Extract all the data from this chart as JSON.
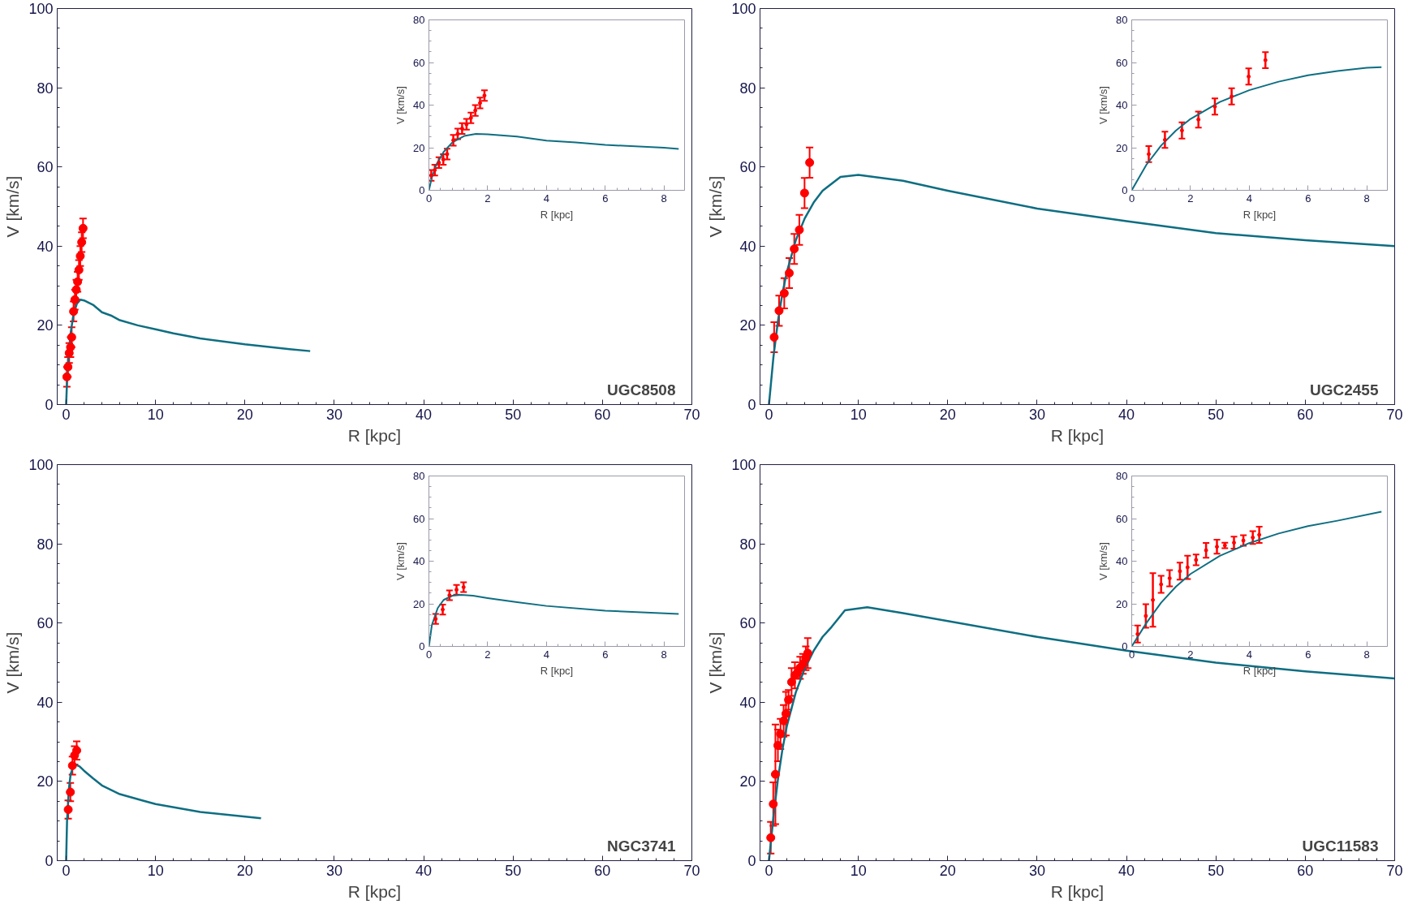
{
  "chart_data": [
    {
      "type": "scatter",
      "xlabel": "R [kpc]",
      "ylabel": "V [km/s]",
      "xlim": [
        -1,
        70
      ],
      "ylim": [
        0,
        100
      ],
      "xticks": [
        0,
        10,
        20,
        30,
        40,
        50,
        60,
        70
      ],
      "yticks": [
        0,
        20,
        40,
        60,
        80,
        100
      ],
      "annotations": [
        "UGC8508"
      ],
      "series": [
        {
          "type": "line",
          "color": "#0e6e82",
          "x": [
            0,
            0.1,
            0.25,
            0.5,
            0.8,
            1.2,
            1.6,
            2,
            3,
            4,
            5,
            6,
            8,
            10,
            12,
            15,
            20,
            25,
            27.3
          ],
          "values": [
            0,
            6,
            12,
            18,
            22.5,
            25.5,
            26.5,
            26.3,
            25.2,
            23.3,
            22.5,
            21.3,
            20,
            19,
            18,
            16.7,
            15.2,
            14,
            13.5
          ]
        },
        {
          "color": "#ff0000",
          "marker": "circle",
          "x": [
            0.08,
            0.2,
            0.34,
            0.49,
            0.62,
            0.83,
            0.98,
            1.13,
            1.28,
            1.43,
            1.58,
            1.74,
            1.89
          ],
          "values": [
            7,
            9.5,
            13,
            14.5,
            17,
            23.5,
            26.5,
            29,
            31,
            34,
            37.5,
            41,
            44.5
          ],
          "errors": [
            2.5,
            2.5,
            2.5,
            2.5,
            2.5,
            2.5,
            2.5,
            2.5,
            2.5,
            2.5,
            2.5,
            2.5,
            2.5
          ]
        }
      ]
    },
    {
      "type": "scatter",
      "xlabel": "R [kpc]",
      "ylabel": "V [km/s]",
      "xlim": [
        0,
        8.7
      ],
      "ylim": [
        0,
        80
      ],
      "xticks": [
        0,
        2,
        4,
        6,
        8
      ],
      "yticks": [
        0,
        20,
        40,
        60,
        80
      ],
      "series": [
        {
          "type": "line",
          "color": "#0e6e82",
          "x": [
            0,
            0.1,
            0.25,
            0.5,
            0.8,
            1.2,
            1.6,
            2,
            3,
            4,
            5,
            6,
            8,
            8.5
          ],
          "values": [
            0,
            6,
            12,
            18,
            22.5,
            25.5,
            26.5,
            26.3,
            25.2,
            23.3,
            22.5,
            21.3,
            20,
            19.4
          ]
        },
        {
          "color": "#ff0000",
          "marker": "circle",
          "x": [
            0.08,
            0.2,
            0.34,
            0.49,
            0.62,
            0.83,
            0.98,
            1.13,
            1.28,
            1.43,
            1.58,
            1.74,
            1.89
          ],
          "values": [
            7,
            9.5,
            13,
            14.5,
            17,
            23.5,
            26.5,
            29,
            31,
            34,
            37.5,
            41,
            44.5
          ],
          "errors": [
            2.5,
            2.5,
            2.5,
            2.5,
            2.5,
            2.5,
            2.5,
            2.5,
            2.5,
            2.5,
            2.5,
            2.5,
            2.5
          ]
        }
      ]
    },
    {
      "type": "scatter",
      "xlabel": "R [kpc]",
      "ylabel": "V [km/s]",
      "xlim": [
        -1,
        70
      ],
      "ylim": [
        0,
        100
      ],
      "xticks": [
        0,
        10,
        20,
        30,
        40,
        50,
        60,
        70
      ],
      "yticks": [
        0,
        20,
        40,
        60,
        80,
        100
      ],
      "annotations": [
        "UGC2455"
      ],
      "series": [
        {
          "type": "line",
          "color": "#0e6e82",
          "x": [
            0,
            0.5,
            1,
            1.5,
            2,
            3,
            4,
            5,
            6,
            8,
            10,
            15,
            20,
            30,
            40,
            50,
            60,
            70
          ],
          "values": [
            0,
            12,
            21,
            28,
            33.5,
            41.5,
            47,
            51,
            54,
            57.5,
            58,
            56.5,
            54,
            49.5,
            46.3,
            43.3,
            41.5,
            40
          ]
        },
        {
          "color": "#ff0000",
          "marker": "circle",
          "x": [
            0.58,
            1.13,
            1.71,
            2.27,
            2.83,
            3.4,
            3.98,
            4.55
          ],
          "values": [
            17,
            23.7,
            28.1,
            33.2,
            39.3,
            44.1,
            53.4,
            61.1
          ],
          "errors": [
            3.8,
            3.8,
            3.8,
            3.8,
            3.8,
            3.8,
            3.8,
            3.8
          ]
        }
      ]
    },
    {
      "type": "scatter",
      "xlabel": "R [kpc]",
      "ylabel": "V [km/s]",
      "xlim": [
        0,
        8.7
      ],
      "ylim": [
        0,
        80
      ],
      "xticks": [
        0,
        2,
        4,
        6,
        8
      ],
      "yticks": [
        0,
        20,
        40,
        60,
        80
      ],
      "series": [
        {
          "type": "line",
          "color": "#0e6e82",
          "x": [
            0,
            0.5,
            1,
            1.5,
            2,
            3,
            4,
            5,
            6,
            7,
            8,
            8.5
          ],
          "values": [
            0,
            12,
            21,
            28,
            33.5,
            41.5,
            47,
            51,
            54,
            56,
            57.5,
            57.8
          ]
        },
        {
          "color": "#ff0000",
          "marker": "circle",
          "x": [
            0.58,
            1.13,
            1.71,
            2.27,
            2.83,
            3.4,
            3.98,
            4.55
          ],
          "values": [
            17,
            23.7,
            28.1,
            33.2,
            39.3,
            44.1,
            53.4,
            61.1
          ],
          "errors": [
            3.8,
            3.8,
            3.8,
            3.8,
            3.8,
            3.8,
            3.8,
            3.8
          ]
        }
      ]
    },
    {
      "type": "scatter",
      "xlabel": "R [kpc]",
      "ylabel": "V [km/s]",
      "xlim": [
        -1,
        70
      ],
      "ylim": [
        0,
        100
      ],
      "xticks": [
        0,
        10,
        20,
        30,
        40,
        50,
        60,
        70
      ],
      "yticks": [
        0,
        20,
        40,
        60,
        80,
        100
      ],
      "annotations": [
        "NGC3741"
      ],
      "series": [
        {
          "type": "line",
          "color": "#0e6e82",
          "x": [
            0,
            0.1,
            0.3,
            0.5,
            0.8,
            1.1,
            1.5,
            2,
            3,
            4,
            6,
            8.5,
            10,
            15,
            21.8
          ],
          "values": [
            0,
            10,
            18,
            21.8,
            23.8,
            24.2,
            23.8,
            22.7,
            20.8,
            19,
            16.8,
            15.2,
            14.3,
            12.3,
            10.7
          ]
        },
        {
          "color": "#ff0000",
          "marker": "circle",
          "x": [
            0.23,
            0.47,
            0.7,
            0.94,
            1.18
          ],
          "values": [
            12.9,
            17.3,
            24,
            26.6,
            27.8
          ],
          "errors": [
            2.3,
            2.3,
            2.3,
            2.3,
            2.3
          ]
        }
      ]
    },
    {
      "type": "scatter",
      "xlabel": "R [kpc]",
      "ylabel": "V [km/s]",
      "xlim": [
        0,
        8.7
      ],
      "ylim": [
        0,
        80
      ],
      "xticks": [
        0,
        2,
        4,
        6,
        8
      ],
      "yticks": [
        0,
        20,
        40,
        60,
        80
      ],
      "series": [
        {
          "type": "line",
          "color": "#0e6e82",
          "x": [
            0,
            0.1,
            0.3,
            0.5,
            0.8,
            1.1,
            1.5,
            2,
            3,
            4,
            6,
            8.5
          ],
          "values": [
            0,
            10,
            18,
            21.8,
            23.8,
            24.2,
            23.8,
            22.7,
            20.8,
            19,
            16.8,
            15.2
          ]
        },
        {
          "color": "#ff0000",
          "marker": "circle",
          "x": [
            0.23,
            0.47,
            0.7,
            0.94,
            1.18
          ],
          "values": [
            12.9,
            17.3,
            24,
            26.6,
            27.8
          ],
          "errors": [
            2.3,
            2.3,
            2.3,
            2.3,
            2.3
          ]
        }
      ]
    },
    {
      "type": "scatter",
      "xlabel": "R [kpc]",
      "ylabel": "V [km/s]",
      "xlim": [
        -1,
        70
      ],
      "ylim": [
        0,
        100
      ],
      "xticks": [
        0,
        10,
        20,
        30,
        40,
        50,
        60,
        70
      ],
      "yticks": [
        0,
        20,
        40,
        60,
        80,
        100
      ],
      "annotations": [
        "UGC11583"
      ],
      "series": [
        {
          "type": "line",
          "color": "#0e6e82",
          "x": [
            0,
            0.5,
            1,
            1.5,
            2,
            3,
            4,
            5,
            6,
            7,
            8.5,
            11,
            15,
            20,
            30,
            40,
            50,
            60,
            70
          ],
          "values": [
            0,
            11,
            20.5,
            28,
            34,
            42.5,
            48.5,
            53,
            56.5,
            59,
            63.2,
            64,
            62.5,
            60.5,
            56.5,
            53,
            50,
            47.8,
            46
          ]
        },
        {
          "color": "#ff0000",
          "marker": "circle",
          "x": [
            0.2,
            0.48,
            0.72,
            1.0,
            1.29,
            1.64,
            1.9,
            2.19,
            2.53,
            2.9,
            3.17,
            3.48,
            3.8,
            4.12,
            4.34
          ],
          "values": [
            5.8,
            14.3,
            21.8,
            29.1,
            32,
            35.3,
            37.1,
            40.6,
            45.1,
            46.8,
            47.4,
            48.7,
            49.7,
            51.1,
            52.4
          ],
          "errors": [
            4,
            5.5,
            12.6,
            4,
            3.8,
            4,
            5.5,
            2.5,
            3.5,
            3.3,
            1.3,
            2.8,
            2.5,
            3,
            3.8
          ]
        }
      ]
    },
    {
      "type": "scatter",
      "xlabel": "R [kpc]",
      "ylabel": "V [km/s]",
      "xlim": [
        0,
        8.7
      ],
      "ylim": [
        0,
        80
      ],
      "xticks": [
        0,
        2,
        4,
        6,
        8
      ],
      "yticks": [
        0,
        20,
        40,
        60,
        80
      ],
      "series": [
        {
          "type": "line",
          "color": "#0e6e82",
          "x": [
            0,
            0.5,
            1,
            1.5,
            2,
            3,
            4,
            5,
            6,
            7,
            8.5
          ],
          "values": [
            0,
            11,
            20.5,
            28,
            34,
            42.5,
            48.5,
            53,
            56.5,
            59,
            63.2
          ]
        },
        {
          "color": "#ff0000",
          "marker": "circle",
          "x": [
            0.2,
            0.48,
            0.72,
            1.0,
            1.29,
            1.64,
            1.9,
            2.19,
            2.53,
            2.9,
            3.17,
            3.48,
            3.8,
            4.12,
            4.34
          ],
          "values": [
            5.8,
            14.3,
            21.8,
            29.1,
            32,
            35.3,
            37.1,
            40.6,
            45.1,
            46.8,
            47.4,
            48.7,
            49.7,
            51.1,
            52.4
          ],
          "errors": [
            4,
            5.5,
            12.6,
            4,
            3.8,
            4,
            5.5,
            2.5,
            3.5,
            3.3,
            1.3,
            2.8,
            2.5,
            3,
            3.8
          ]
        }
      ]
    }
  ]
}
